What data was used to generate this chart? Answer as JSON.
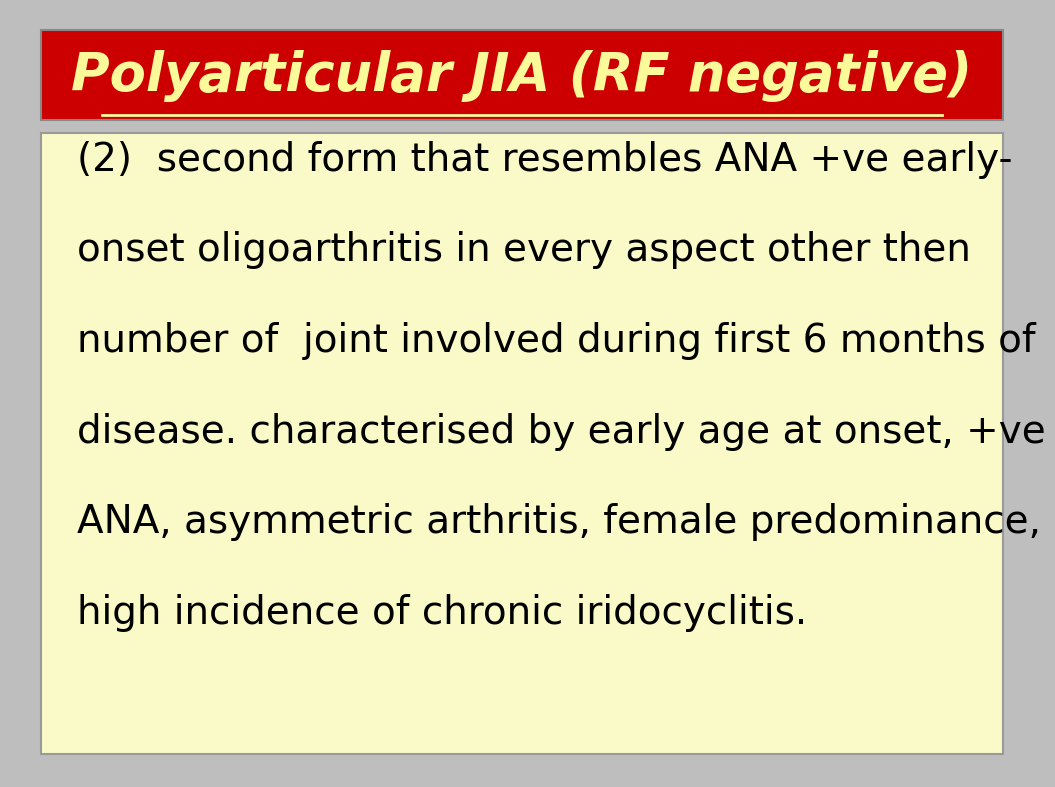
{
  "title": "Polyarticular JIA (RF negative)",
  "title_color": "#FAFA9A",
  "title_bg_color": "#CC0000",
  "title_fontsize": 38,
  "body_lines": [
    "(2)  second form that resembles ANA +ve early-",
    "onset oligoarthritis in every aspect other then",
    "number of  joint involved during first 6 months of",
    "disease. characterised by early age at onset, +ve",
    "ANA, asymmetric arthritis, female predominance,",
    "high incidence of chronic iridocyclitis."
  ],
  "body_fontsize": 28,
  "body_color": "#000000",
  "body_bg_color": "#FAFAC8",
  "body_border_color": "#999999",
  "slide_bg_color": "#BEBEBE"
}
